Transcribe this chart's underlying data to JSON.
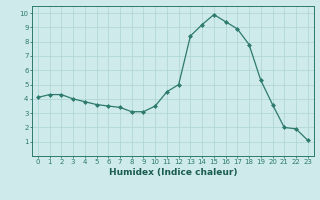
{
  "x": [
    0,
    1,
    2,
    3,
    4,
    5,
    6,
    7,
    8,
    9,
    10,
    11,
    12,
    13,
    14,
    15,
    16,
    17,
    18,
    19,
    20,
    21,
    22,
    23
  ],
  "y": [
    4.1,
    4.3,
    4.3,
    4.0,
    3.8,
    3.6,
    3.5,
    3.4,
    3.1,
    3.1,
    3.5,
    4.5,
    5.0,
    8.4,
    9.2,
    9.9,
    9.4,
    8.9,
    7.8,
    5.3,
    3.6,
    2.0,
    1.9,
    1.1
  ],
  "line_color": "#2d7a6e",
  "marker": "D",
  "marker_size": 2.0,
  "xlabel": "Humidex (Indice chaleur)",
  "bg_color": "#ceeaea",
  "grid_color": "#acd4d4",
  "tick_color": "#2d7a6e",
  "label_color": "#1a5c52",
  "ylim": [
    0,
    10.5
  ],
  "xlim": [
    -0.5,
    23.5
  ],
  "yticks": [
    1,
    2,
    3,
    4,
    5,
    6,
    7,
    8,
    9,
    10
  ],
  "xticks": [
    0,
    1,
    2,
    3,
    4,
    5,
    6,
    7,
    8,
    9,
    10,
    11,
    12,
    13,
    14,
    15,
    16,
    17,
    18,
    19,
    20,
    21,
    22,
    23
  ],
  "tick_fontsize": 5.0,
  "xlabel_fontsize": 6.5,
  "linewidth": 0.9
}
